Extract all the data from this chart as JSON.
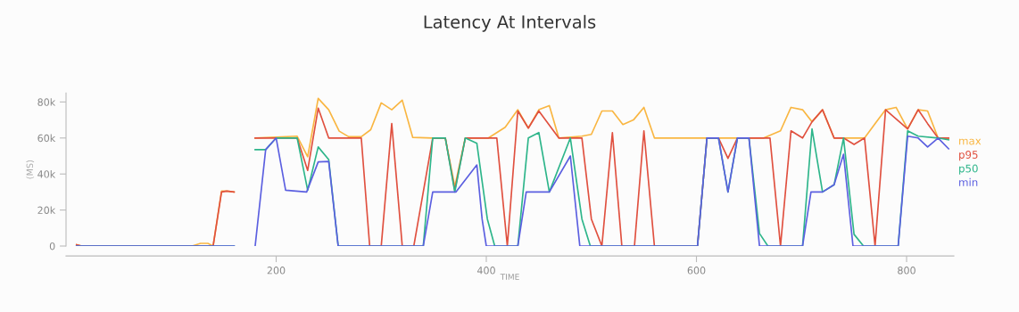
{
  "chart_data": {
    "type": "line",
    "title": "Latency At Intervals",
    "xlabel": "TIME",
    "ylabel": "(MS)",
    "xlim": [
      0,
      845
    ],
    "ylim": [
      0,
      85000
    ],
    "xticks": [
      200,
      400,
      600,
      800
    ],
    "yticks": [
      {
        "value": 0,
        "label": "0"
      },
      {
        "value": 20000,
        "label": "20k"
      },
      {
        "value": 40000,
        "label": "40k"
      },
      {
        "value": 60000,
        "label": "60k"
      },
      {
        "value": 80000,
        "label": "80k"
      }
    ],
    "grid": false,
    "legend": "right",
    "marker": "none",
    "line_style": "solid",
    "series": [
      {
        "name": "max",
        "color": "#f9b642",
        "x": [
          10,
          15,
          120,
          128,
          135,
          140,
          148,
          153,
          160,
          170,
          180,
          220,
          230,
          240,
          250,
          260,
          269,
          281,
          290,
          300,
          310,
          320,
          330,
          349,
          361,
          370,
          380,
          402,
          418,
          430,
          440,
          450,
          460,
          469,
          491,
          500,
          510,
          520,
          530,
          540,
          550,
          560,
          664,
          680,
          690,
          701,
          710,
          720,
          731,
          760,
          770,
          780,
          790,
          801,
          811,
          820,
          830,
          840
        ],
        "values": [
          700,
          0,
          0,
          1500,
          1500,
          0,
          30500,
          30500,
          30000,
          null,
          60000,
          61000,
          49600,
          82000,
          75700,
          63800,
          60700,
          60700,
          64600,
          79500,
          75700,
          81000,
          60300,
          60000,
          60000,
          33000,
          60000,
          60000,
          66000,
          75700,
          65500,
          75700,
          78000,
          60000,
          61000,
          62000,
          75000,
          75000,
          67500,
          70000,
          77000,
          60000,
          60000,
          64000,
          77000,
          75700,
          69000,
          75700,
          60000,
          60000,
          68000,
          75700,
          77000,
          65000,
          75700,
          75000,
          60000,
          60000
        ]
      },
      {
        "name": "p95",
        "color": "#e0503f",
        "x": [
          10,
          15,
          140,
          148,
          153,
          160,
          170,
          180,
          220,
          230,
          240,
          250,
          281,
          289,
          300,
          310,
          320,
          331,
          349,
          361,
          370,
          380,
          410,
          420,
          430,
          440,
          450,
          469,
          491,
          500,
          510,
          520,
          529,
          541,
          550,
          560,
          601,
          610,
          621,
          630,
          639,
          670,
          680,
          690,
          701,
          710,
          720,
          731,
          740,
          750,
          760,
          770,
          780,
          790,
          801,
          811,
          820,
          830,
          840
        ],
        "values": [
          700,
          0,
          0,
          30000,
          30500,
          30000,
          null,
          60000,
          60000,
          42000,
          76600,
          60000,
          60000,
          0,
          0,
          68000,
          0,
          0,
          60000,
          60000,
          31000,
          60000,
          60000,
          0,
          75000,
          65500,
          75000,
          60000,
          60000,
          15000,
          0,
          63000,
          0,
          0,
          64000,
          0,
          0,
          60000,
          60000,
          48700,
          60000,
          60000,
          0,
          64000,
          60000,
          69000,
          75700,
          60000,
          60000,
          56400,
          60000,
          0,
          75700,
          70600,
          65000,
          75700,
          68000,
          60000,
          60000
        ]
      },
      {
        "name": "p50",
        "color": "#2db58a",
        "x": [
          10,
          160,
          170,
          180,
          190,
          200,
          220,
          230,
          240,
          250,
          259,
          340,
          349,
          361,
          370,
          380,
          391,
          396,
          401,
          408,
          430,
          440,
          450,
          460,
          480,
          491,
          499,
          601,
          610,
          621,
          630,
          639,
          650,
          660,
          668,
          701,
          710,
          720,
          731,
          740,
          750,
          759,
          792,
          801,
          811,
          830,
          840
        ],
        "values": [
          0,
          0,
          null,
          53500,
          53500,
          60000,
          60000,
          31000,
          55000,
          48000,
          0,
          0,
          60000,
          60000,
          30000,
          60000,
          57000,
          36000,
          15000,
          0,
          0,
          60000,
          63000,
          30000,
          60000,
          15000,
          0,
          0,
          60000,
          60000,
          30000,
          60000,
          60000,
          7000,
          0,
          0,
          65000,
          30000,
          34000,
          60000,
          6500,
          0,
          0,
          64000,
          61000,
          60000,
          59000
        ]
      },
      {
        "name": "min",
        "color": "#5b5fe0",
        "x": [
          10,
          160,
          170,
          180,
          190,
          200,
          209,
          229,
          240,
          250,
          259,
          340,
          349,
          371,
          391,
          396,
          400,
          430,
          438,
          460,
          480,
          489,
          601,
          610,
          621,
          630,
          639,
          650,
          660,
          701,
          709,
          720,
          731,
          740,
          749,
          792,
          801,
          811,
          820,
          830,
          840
        ],
        "values": [
          0,
          0,
          null,
          0,
          53500,
          60000,
          31000,
          30000,
          46700,
          47000,
          0,
          0,
          30000,
          30000,
          45000,
          15000,
          0,
          0,
          30000,
          30000,
          50000,
          0,
          0,
          60000,
          60000,
          30000,
          60000,
          60000,
          0,
          0,
          30000,
          30000,
          34000,
          51000,
          0,
          0,
          61000,
          60000,
          55000,
          60000,
          54000
        ]
      }
    ]
  }
}
